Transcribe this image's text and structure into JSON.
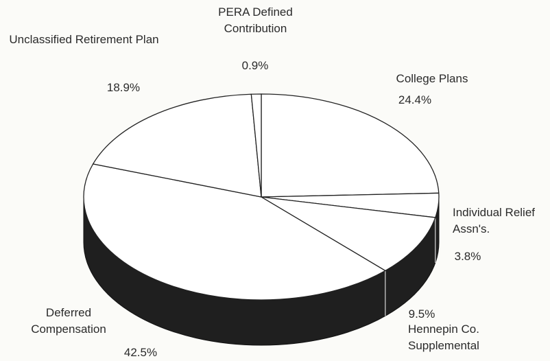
{
  "chart_data": {
    "type": "pie",
    "categories": [
      "College Plans",
      "Individual Relief Assn's.",
      "Hennepin Co. Supplemental",
      "Deferred Compensation",
      "Unclassified Retirement Plan",
      "PERA Defined Contribution"
    ],
    "values": [
      24.4,
      3.8,
      9.5,
      42.5,
      18.9,
      0.9
    ],
    "value_labels": [
      "24.4%",
      "3.8%",
      "9.5%",
      "42.5%",
      "18.9%",
      "0.9%"
    ],
    "color": "#ffffff"
  }
}
